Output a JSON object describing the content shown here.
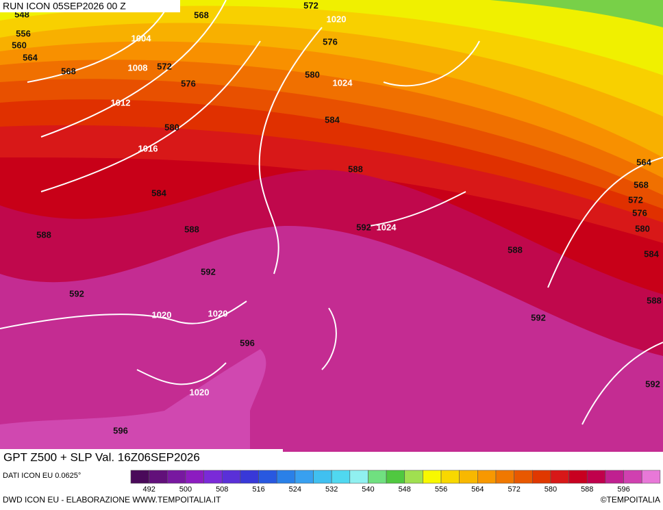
{
  "header": {
    "run": "RUN ICON 05SEP2026 00 Z"
  },
  "map": {
    "gpt_labels": [
      548,
      556,
      560,
      564,
      568,
      568,
      572,
      576,
      572,
      576,
      580,
      580,
      584,
      584,
      588,
      588,
      588,
      592,
      592,
      592,
      596,
      596,
      588,
      592,
      564,
      568,
      572,
      576,
      580,
      584,
      588,
      592
    ],
    "slp_labels": [
      1020,
      1004,
      1008,
      1012,
      1016,
      1024,
      1024,
      1020,
      1020,
      1020
    ]
  },
  "footer": {
    "title": "GPT Z500 + SLP Val. 16Z06SEP2026",
    "source": "DATI ICON EU 0.0625°",
    "credit": "DWD ICON EU - ELABORAZIONE WWW.TEMPOITALIA.IT",
    "copyright": "©TEMPOITALIA"
  },
  "colorbar": {
    "colors": [
      "#4a0a5a",
      "#62107a",
      "#7818a0",
      "#8c1cc0",
      "#7a2ad8",
      "#5a30d8",
      "#3838d8",
      "#2858e0",
      "#2a80e8",
      "#38a0f0",
      "#40c0f0",
      "#50d8f0",
      "#90f0f0",
      "#70e080",
      "#50c840",
      "#a0e050",
      "#f8f800",
      "#f8d800",
      "#f8b800",
      "#f89800",
      "#f07800",
      "#e85800",
      "#e03800",
      "#d81818",
      "#c80020",
      "#c0004c",
      "#c02090",
      "#d040b0",
      "#e878d8"
    ],
    "ticks": [
      492,
      500,
      508,
      516,
      524,
      532,
      540,
      548,
      556,
      564,
      572,
      580,
      588,
      596
    ]
  }
}
